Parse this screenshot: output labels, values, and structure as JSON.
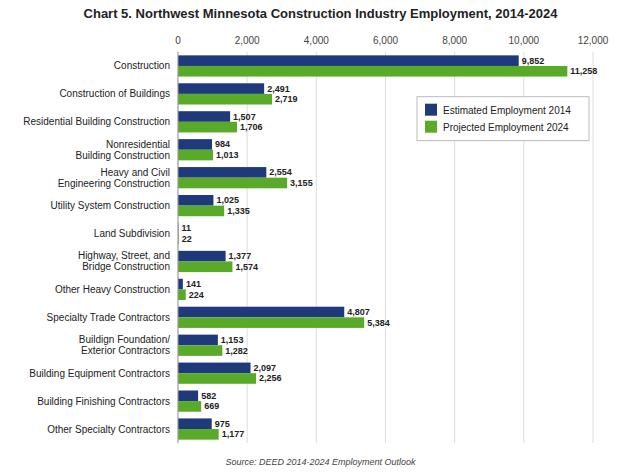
{
  "chart_data": {
    "type": "bar",
    "orientation": "horizontal",
    "title": "Chart 5. Northwest Minnesota Construction Industry Employment, 2014-2024",
    "annotations": [
      "Source: DEED 2014-2024 Employment Outlook"
    ],
    "categories": [
      "Construction",
      "Construction of Buildings",
      "Residential Building Construction",
      "Nonresidential\nBuilding Construction",
      "Heavy and Civil\nEngineering Construction",
      "Utility System Construction",
      "Land Subdivision",
      "Highway, Street, and\nBridge Construction",
      "Other Heavy Construction",
      "Specialty Trade Contractors",
      "Buildign Foundation/\nExterior Contractors",
      "Building Equipment Contractors",
      "Building Finishing Contractors",
      "Other Specialty Contractors"
    ],
    "series": [
      {
        "name": "Estimated Employment 2014",
        "color": "#1F3A7A",
        "values": [
          9852,
          2491,
          1507,
          984,
          2554,
          1025,
          11,
          1377,
          141,
          4807,
          1153,
          2097,
          582,
          975
        ],
        "value_labels": [
          "9,852",
          "2,491",
          "1,507",
          "984",
          "2,554",
          "1,025",
          "11",
          "1,377",
          "141",
          "4,807",
          "1,153",
          "2,097",
          "582",
          "975"
        ]
      },
      {
        "name": "Projected Employment 2024",
        "color": "#5AAA2A",
        "values": [
          11258,
          2719,
          1706,
          1013,
          3155,
          1335,
          22,
          1574,
          224,
          5384,
          1282,
          2256,
          669,
          1177
        ],
        "value_labels": [
          "11,258",
          "2,719",
          "1,706",
          "1,013",
          "3,155",
          "1,335",
          "22",
          "1,574",
          "224",
          "5,384",
          "1,282",
          "2,256",
          "669",
          "1,177"
        ]
      }
    ],
    "xlim": [
      0,
      12000
    ],
    "xticks": [
      0,
      {
        "value": 2000,
        "label": "2,000"
      },
      {
        "value": 4000,
        "label": "4,000"
      },
      {
        "value": 6000,
        "label": "6,000"
      },
      {
        "value": 8000,
        "label": "8,000"
      },
      {
        "value": 10000,
        "label": "10,000"
      },
      {
        "value": 12000,
        "label": "12,000"
      }
    ],
    "grid": true,
    "legend": "upper right",
    "data_labels": true
  }
}
